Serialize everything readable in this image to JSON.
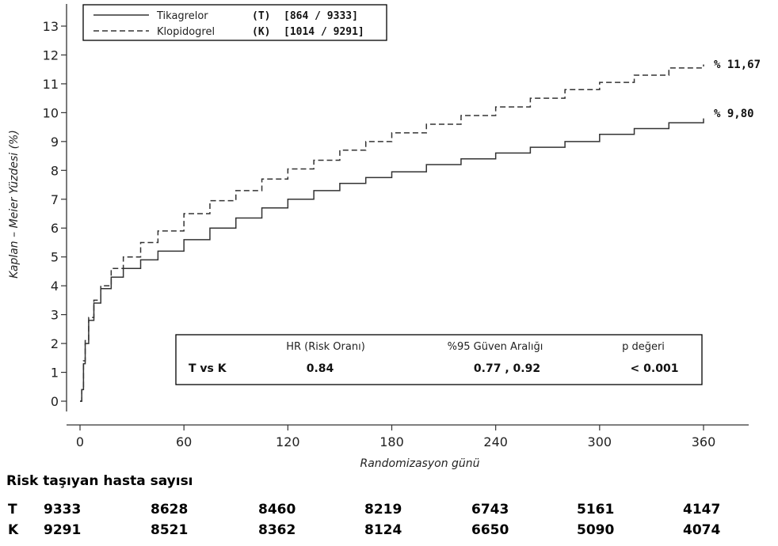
{
  "chart_data": {
    "type": "line",
    "xlabel": "Randomizasyon günü",
    "ylabel": "Kaplan – Meier Yüzdesi (%)",
    "xlim": [
      0,
      360
    ],
    "ylim": [
      0,
      13
    ],
    "x_ticks": [
      0,
      60,
      120,
      180,
      240,
      300,
      360
    ],
    "y_ticks": [
      0,
      1,
      2,
      3,
      4,
      5,
      6,
      7,
      8,
      9,
      10,
      11,
      12,
      13
    ],
    "grid": false,
    "legend_position": "top-left",
    "series": [
      {
        "name": "Tikagrelor",
        "code": "(T)",
        "counts": "[864 / 9333]",
        "style": "solid",
        "end_label": "% 9,80",
        "x": [
          0,
          1,
          2,
          3,
          5,
          8,
          12,
          18,
          25,
          35,
          45,
          60,
          75,
          90,
          105,
          120,
          135,
          150,
          165,
          180,
          200,
          220,
          240,
          260,
          280,
          300,
          320,
          340,
          360
        ],
        "y": [
          0,
          0.4,
          1.3,
          2.0,
          2.8,
          3.4,
          3.9,
          4.3,
          4.6,
          4.9,
          5.2,
          5.6,
          6.0,
          6.35,
          6.7,
          7.0,
          7.3,
          7.55,
          7.75,
          7.95,
          8.2,
          8.4,
          8.6,
          8.8,
          9.0,
          9.25,
          9.45,
          9.65,
          9.8
        ]
      },
      {
        "name": "Klopidogrel",
        "code": "(K)",
        "counts": "[1014 / 9291]",
        "style": "dashed",
        "end_label": "% 11,67",
        "x": [
          0,
          1,
          2,
          3,
          5,
          8,
          12,
          18,
          25,
          35,
          45,
          60,
          75,
          90,
          105,
          120,
          135,
          150,
          165,
          180,
          200,
          220,
          240,
          260,
          280,
          300,
          320,
          340,
          360
        ],
        "y": [
          0,
          0.4,
          1.4,
          2.1,
          2.9,
          3.5,
          4.0,
          4.6,
          5.0,
          5.5,
          5.9,
          6.5,
          6.95,
          7.3,
          7.7,
          8.05,
          8.35,
          8.7,
          9.0,
          9.3,
          9.6,
          9.9,
          10.2,
          10.5,
          10.8,
          11.05,
          11.3,
          11.55,
          11.67
        ]
      }
    ]
  },
  "stats_box": {
    "headers": {
      "hr": "HR (Risk Oranı)",
      "ci": "%95 Güven Aralığı",
      "p": "p değeri"
    },
    "row_label": "T vs K",
    "hr": "0.84",
    "ci": "0.77 , 0.92",
    "p": "< 0.001"
  },
  "risk_table": {
    "title": "Risk taşıyan hasta sayısı",
    "rows": [
      {
        "code": "T",
        "values": [
          "9333",
          "8628",
          "8460",
          "8219",
          "6743",
          "5161",
          "4147"
        ]
      },
      {
        "code": "K",
        "values": [
          "9291",
          "8521",
          "8362",
          "8124",
          "6650",
          "5090",
          "4074"
        ]
      }
    ]
  },
  "colors": {
    "line": "#333333",
    "axis": "#333333",
    "box": "#000000"
  }
}
